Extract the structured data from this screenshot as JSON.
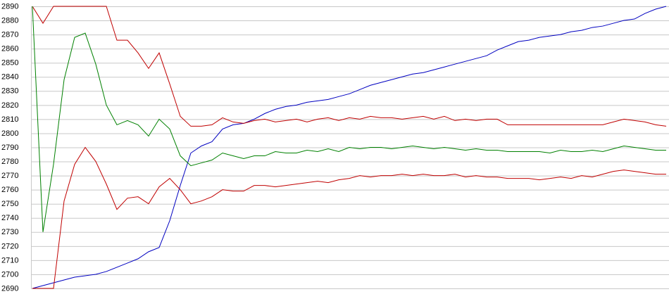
{
  "chart_data": {
    "type": "line",
    "ylim": [
      2690,
      2890
    ],
    "yticks": [
      2690,
      2700,
      2710,
      2720,
      2730,
      2740,
      2750,
      2760,
      2770,
      2780,
      2790,
      2800,
      2810,
      2820,
      2830,
      2840,
      2850,
      2860,
      2870,
      2880,
      2890
    ],
    "grid": true,
    "series": [
      {
        "color": "#0000c0",
        "values": [
          2690,
          2692,
          2694,
          2696,
          2698,
          2699,
          2700,
          2702,
          2705,
          2708,
          2711,
          2716,
          2719,
          2738,
          2763,
          2786,
          2791,
          2794,
          2803,
          2806,
          2807,
          2810,
          2814,
          2817,
          2819,
          2820,
          2822,
          2823,
          2824,
          2826,
          2828,
          2831,
          2834,
          2836,
          2838,
          2840,
          2842,
          2843,
          2845,
          2847,
          2849,
          2851,
          2853,
          2855,
          2859,
          2862,
          2865,
          2866,
          2868,
          2869,
          2870,
          2872,
          2873,
          2875,
          2876,
          2878,
          2880,
          2881,
          2885,
          2888,
          2890
        ]
      },
      {
        "color": "#c00000",
        "values": [
          2890,
          2878,
          2890,
          2890,
          2890,
          2890,
          2890,
          2890,
          2866,
          2866,
          2857,
          2846,
          2857,
          2835,
          2812,
          2805,
          2805,
          2806,
          2811,
          2808,
          2807,
          2809,
          2810,
          2808,
          2809,
          2810,
          2808,
          2810,
          2811,
          2809,
          2811,
          2810,
          2812,
          2811,
          2811,
          2810,
          2811,
          2812,
          2810,
          2812,
          2809,
          2810,
          2809,
          2810,
          2810,
          2806,
          2806,
          2806,
          2806,
          2806,
          2806,
          2806,
          2806,
          2806,
          2806,
          2808,
          2810,
          2809,
          2808,
          2806,
          2805
        ]
      },
      {
        "color": "#008000",
        "values": [
          2890,
          2730,
          2778,
          2838,
          2868,
          2871,
          2849,
          2820,
          2806,
          2809,
          2806,
          2798,
          2810,
          2803,
          2784,
          2777,
          2779,
          2781,
          2786,
          2784,
          2782,
          2784,
          2784,
          2787,
          2786,
          2786,
          2788,
          2787,
          2789,
          2787,
          2790,
          2789,
          2790,
          2790,
          2789,
          2790,
          2791,
          2790,
          2789,
          2790,
          2789,
          2788,
          2789,
          2788,
          2788,
          2787,
          2787,
          2787,
          2787,
          2786,
          2788,
          2787,
          2787,
          2788,
          2787,
          2789,
          2791,
          2790,
          2789,
          2788,
          2788
        ]
      },
      {
        "color": "#c00000",
        "values": [
          2690,
          2690,
          2690,
          2752,
          2778,
          2790,
          2780,
          2764,
          2746,
          2754,
          2755,
          2750,
          2762,
          2768,
          2760,
          2750,
          2752,
          2755,
          2760,
          2759,
          2759,
          2763,
          2763,
          2762,
          2763,
          2764,
          2765,
          2766,
          2765,
          2767,
          2768,
          2770,
          2769,
          2770,
          2770,
          2771,
          2770,
          2771,
          2770,
          2770,
          2771,
          2769,
          2770,
          2769,
          2769,
          2768,
          2768,
          2768,
          2767,
          2768,
          2769,
          2768,
          2770,
          2769,
          2771,
          2773,
          2774,
          2773,
          2772,
          2771,
          2771
        ]
      }
    ]
  }
}
